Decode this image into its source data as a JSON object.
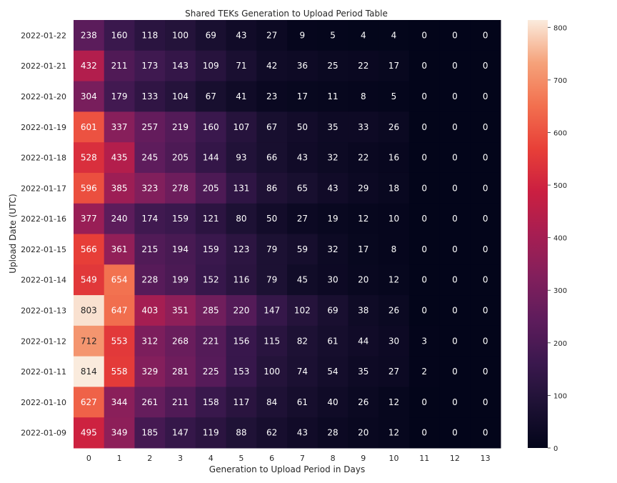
{
  "chart_data": {
    "type": "heatmap",
    "title": "Shared TEKs Generation to Upload Period Table",
    "xlabel": "Generation to Upload Period in Days",
    "ylabel": "Upload Date (UTC)",
    "x_categories": [
      "0",
      "1",
      "2",
      "3",
      "4",
      "5",
      "6",
      "7",
      "8",
      "9",
      "10",
      "11",
      "12",
      "13"
    ],
    "y_categories": [
      "2022-01-22",
      "2022-01-21",
      "2022-01-20",
      "2022-01-19",
      "2022-01-18",
      "2022-01-17",
      "2022-01-16",
      "2022-01-15",
      "2022-01-14",
      "2022-01-13",
      "2022-01-12",
      "2022-01-11",
      "2022-01-10",
      "2022-01-09"
    ],
    "values": [
      [
        238,
        160,
        118,
        100,
        69,
        43,
        27,
        9,
        5,
        4,
        4,
        0,
        0,
        0
      ],
      [
        432,
        211,
        173,
        143,
        109,
        71,
        42,
        36,
        25,
        22,
        17,
        0,
        0,
        0
      ],
      [
        304,
        179,
        133,
        104,
        67,
        41,
        23,
        17,
        11,
        8,
        5,
        0,
        0,
        0
      ],
      [
        601,
        337,
        257,
        219,
        160,
        107,
        67,
        50,
        35,
        33,
        26,
        0,
        0,
        0
      ],
      [
        528,
        435,
        245,
        205,
        144,
        93,
        66,
        43,
        32,
        22,
        16,
        0,
        0,
        0
      ],
      [
        596,
        385,
        323,
        278,
        205,
        131,
        86,
        65,
        43,
        29,
        18,
        0,
        0,
        0
      ],
      [
        377,
        240,
        174,
        159,
        121,
        80,
        50,
        27,
        19,
        12,
        10,
        0,
        0,
        0
      ],
      [
        566,
        361,
        215,
        194,
        159,
        123,
        79,
        59,
        32,
        17,
        8,
        0,
        0,
        0
      ],
      [
        549,
        654,
        228,
        199,
        152,
        116,
        79,
        45,
        30,
        20,
        12,
        0,
        0,
        0
      ],
      [
        803,
        647,
        403,
        351,
        285,
        220,
        147,
        102,
        69,
        38,
        26,
        0,
        0,
        0
      ],
      [
        712,
        553,
        312,
        268,
        221,
        156,
        115,
        82,
        61,
        44,
        30,
        3,
        0,
        0
      ],
      [
        814,
        558,
        329,
        281,
        225,
        153,
        100,
        74,
        54,
        35,
        27,
        2,
        0,
        0
      ],
      [
        627,
        344,
        261,
        211,
        158,
        117,
        84,
        61,
        40,
        26,
        12,
        0,
        0,
        0
      ],
      [
        495,
        349,
        185,
        147,
        119,
        88,
        62,
        43,
        28,
        20,
        12,
        0,
        0,
        0
      ]
    ],
    "vmin": 0,
    "vmax": 814,
    "colormap": "rocket",
    "colorbar_ticks": [
      0,
      100,
      200,
      300,
      400,
      500,
      600,
      700,
      800
    ],
    "annotate": true
  }
}
